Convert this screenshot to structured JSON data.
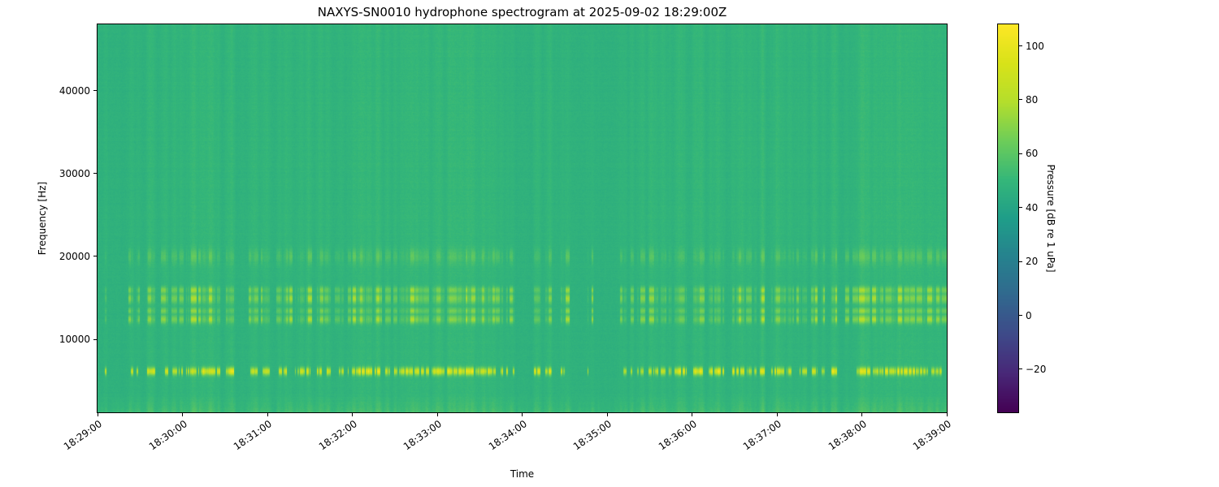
{
  "chart_data": {
    "type": "heatmap",
    "title": "NAXYS-SN0010 hydrophone spectrogram at 2025-09-02 18:29:00Z",
    "xlabel": "Time",
    "ylabel": "Frequency [Hz]",
    "x_tick_labels": [
      "18:29:00",
      "18:30:00",
      "18:31:00",
      "18:32:00",
      "18:33:00",
      "18:34:00",
      "18:35:00",
      "18:36:00",
      "18:37:00",
      "18:38:00",
      "18:39:00"
    ],
    "x_tick_seconds": [
      0,
      60,
      120,
      180,
      240,
      300,
      360,
      420,
      480,
      540,
      600
    ],
    "x_range_seconds": [
      0,
      600
    ],
    "y_tick_values": [
      10000,
      20000,
      30000,
      40000
    ],
    "y_tick_labels": [
      "10000",
      "20000",
      "30000",
      "40000"
    ],
    "ylim": [
      1200,
      48000
    ],
    "grid": false,
    "background_db": 46,
    "colormap": "viridis",
    "colorbar": {
      "label": "Pressure [dB re 1 uPa]",
      "tick_values": [
        100,
        80,
        60,
        40,
        20,
        0,
        -20
      ],
      "tick_labels": [
        "100",
        "80",
        "60",
        "40",
        "20",
        "0",
        "−20"
      ],
      "clim": [
        -36,
        108
      ],
      "position": "right"
    },
    "features": [
      {
        "name": "click_train",
        "description": "intermittent bright clicks forming a dashed horizontal band",
        "freq_center_hz": 6100,
        "freq_width_hz": 450,
        "peak_db": 104
      },
      {
        "name": "mid_harmonics",
        "description": "vertical streaks in harmonic sub-bands",
        "freq_hz": [
          11500,
          16500
        ],
        "sub_bands_hz": [
          12400,
          13400,
          14900,
          15900
        ],
        "sub_band_sigmas_hz": [
          500,
          400,
          600,
          450
        ],
        "sub_band_weights": [
          1,
          0.8,
          1,
          0.9
        ],
        "peak_db": 75
      },
      {
        "name": "high_band",
        "description": "faint streaks near 20 kHz",
        "freq_center_hz": 20000,
        "freq_sigma_hz": 900,
        "peak_db": 58
      },
      {
        "name": "broadband_transients",
        "description": "faint full-height vertical stripes at click times",
        "peak_db": 53
      },
      {
        "name": "low_noise",
        "description": "mottled brighter texture at lowest frequencies",
        "freq_below_hz": 3200,
        "peak_db": 58
      }
    ]
  }
}
